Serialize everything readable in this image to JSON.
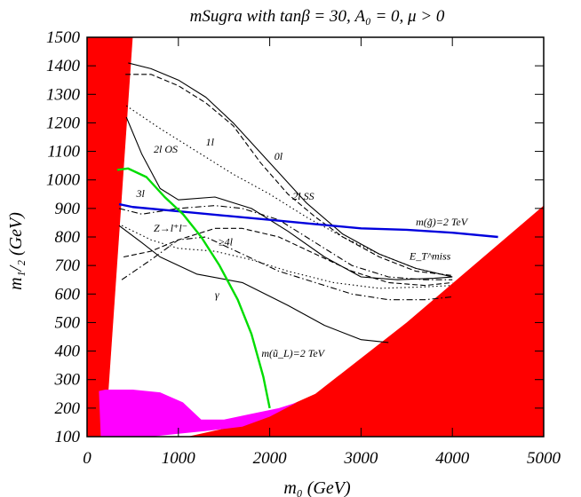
{
  "chart_data": {
    "type": "line",
    "title": "mSugra with tanβ = 30, A₀ = 0, μ > 0",
    "xlabel": "m₀ (GeV)",
    "ylabel": "m₁/₂ (GeV)",
    "xlim": [
      0,
      5000
    ],
    "ylim": [
      100,
      1500
    ],
    "x_ticks": [
      "0",
      "1000",
      "2000",
      "3000",
      "4000",
      "5000"
    ],
    "y_ticks": [
      "100",
      "200",
      "300",
      "400",
      "500",
      "600",
      "700",
      "800",
      "900",
      "1000",
      "1100",
      "1200",
      "1300",
      "1400",
      "1500"
    ],
    "colors": {
      "excluded": "#ff0000",
      "magenta_region": "#ff00ff",
      "gluino": "#0000dd",
      "squark": "#00dd00"
    },
    "labels": [
      {
        "text": "1l",
        "x": 1300,
        "y": 1120
      },
      {
        "text": "0l",
        "x": 2050,
        "y": 1070
      },
      {
        "text": "2l OS",
        "x": 730,
        "y": 1095
      },
      {
        "text": "3l",
        "x": 540,
        "y": 940
      },
      {
        "text": "2l SS",
        "x": 2250,
        "y": 930
      },
      {
        "text": "Z→l⁺l⁻",
        "x": 730,
        "y": 818
      },
      {
        "text": "≥4l",
        "x": 1440,
        "y": 770
      },
      {
        "text": "γ",
        "x": 1400,
        "y": 585
      },
      {
        "text": "m(g̃)=2 TeV",
        "x": 3600,
        "y": 840
      },
      {
        "text": "E_T^miss",
        "x": 3530,
        "y": 720
      },
      {
        "text": "m(ũ_L)=2 TeV",
        "x": 1910,
        "y": 380
      }
    ],
    "series": [
      {
        "style": "solid",
        "x": [
          450,
          700,
          1000,
          1300,
          1600,
          2000,
          2400,
          2800,
          3200,
          3600,
          4000
        ],
        "y": [
          1410,
          1390,
          1350,
          1290,
          1200,
          1060,
          920,
          810,
          740,
          690,
          660
        ]
      },
      {
        "style": "dashed",
        "x": [
          420,
          700,
          1000,
          1300,
          1600,
          1900,
          2200,
          2500,
          2800,
          3200,
          3600,
          4000
        ],
        "y": [
          1370,
          1370,
          1330,
          1270,
          1190,
          1060,
          950,
          870,
          800,
          730,
          680,
          665
        ]
      },
      {
        "style": "dotted",
        "x": [
          430,
          800,
          1200,
          1600,
          2000,
          2400,
          2800,
          3200,
          3600,
          4000
        ],
        "y": [
          1260,
          1180,
          1100,
          1020,
          950,
          870,
          800,
          740,
          690,
          660
        ]
      },
      {
        "style": "solid",
        "x": [
          430,
          600,
          800,
          1000,
          1400,
          1800,
          2200,
          2600,
          3000,
          3400,
          3800,
          4000
        ],
        "y": [
          1220,
          1090,
          970,
          930,
          940,
          900,
          820,
          730,
          660,
          650,
          655,
          660
        ]
      },
      {
        "style": "dashdot",
        "x": [
          350,
          600,
          1000,
          1400,
          1700,
          2100,
          2500,
          2900,
          3300,
          3700,
          4000
        ],
        "y": [
          900,
          880,
          900,
          910,
          900,
          860,
          780,
          700,
          660,
          650,
          650
        ]
      },
      {
        "style": "solid",
        "x": [
          350,
          600,
          800,
          1200,
          1700,
          2200,
          2600,
          3000,
          3300
        ],
        "y": [
          840,
          780,
          730,
          670,
          640,
          560,
          490,
          440,
          430
        ]
      },
      {
        "style": "dashed",
        "x": [
          400,
          700,
          1000,
          1400,
          1700,
          2100,
          2500,
          2900,
          3300,
          3700,
          4000
        ],
        "y": [
          730,
          750,
          790,
          830,
          830,
          800,
          740,
          680,
          640,
          630,
          640
        ]
      },
      {
        "style": "dashdot",
        "x": [
          380,
          700,
          1000,
          1300,
          1700,
          2100,
          2500,
          2900,
          3300,
          3700,
          4000
        ],
        "y": [
          650,
          720,
          790,
          800,
          740,
          680,
          640,
          600,
          580,
          580,
          590
        ]
      },
      {
        "style": "dotted",
        "x": [
          380,
          700,
          1000,
          1400,
          1800,
          2200,
          2700,
          3200,
          3700,
          4000
        ],
        "y": [
          840,
          790,
          760,
          750,
          720,
          680,
          640,
          620,
          625,
          630
        ]
      },
      {
        "name": "m(g̃)=2 TeV",
        "color": "#0000dd",
        "x": [
          350,
          500,
          1000,
          1500,
          2000,
          2500,
          3000,
          3500,
          4000,
          4500
        ],
        "y": [
          915,
          905,
          890,
          875,
          860,
          845,
          830,
          825,
          815,
          800
        ]
      },
      {
        "name": "m(ũ_L)=2 TeV",
        "color": "#00dd00",
        "x": [
          330,
          450,
          650,
          850,
          1050,
          1250,
          1450,
          1650,
          1800,
          1930,
          2000
        ],
        "y": [
          1035,
          1040,
          1010,
          940,
          880,
          800,
          700,
          580,
          460,
          310,
          200
        ]
      }
    ],
    "regions": [
      {
        "name": "excluded-left",
        "color": "#ff0000",
        "x": [
          0,
          500,
          200,
          0
        ],
        "y": [
          1500,
          1500,
          100,
          100
        ]
      },
      {
        "name": "excluded-right",
        "color": "#ff0000",
        "x": [
          1100,
          1800,
          2500,
          3500,
          5000,
          5000
        ],
        "y": [
          100,
          150,
          250,
          500,
          910,
          100
        ]
      },
      {
        "name": "magenta-region",
        "color": "#ff00ff",
        "x": [
          130,
          200,
          500,
          800,
          1050,
          1250,
          1500,
          1800,
          2100,
          2300,
          2000,
          1700,
          1300,
          1000,
          700,
          400,
          150
        ],
        "y": [
          260,
          265,
          265,
          255,
          220,
          160,
          160,
          180,
          200,
          220,
          170,
          135,
          120,
          110,
          100,
          100,
          100
        ]
      }
    ]
  }
}
